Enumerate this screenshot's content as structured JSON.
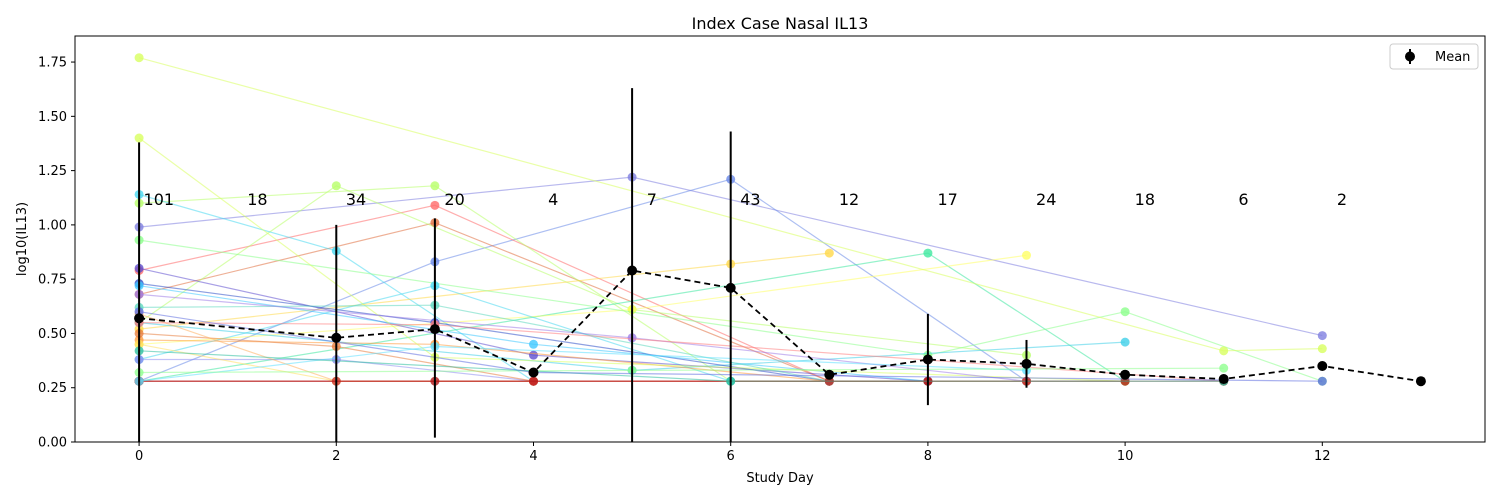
{
  "chart_data": {
    "type": "line",
    "title": "Index Case Nasal IL13",
    "xlabel": "Study Day",
    "ylabel": "log10(IL13)",
    "xlim": [
      -0.65,
      13.65
    ],
    "ylim": [
      0.0,
      1.87
    ],
    "xticks": [
      0,
      2,
      4,
      6,
      8,
      10,
      12
    ],
    "xtick_labels": [
      "0",
      "2",
      "4",
      "6",
      "8",
      "10",
      "12"
    ],
    "yticks": [
      0.0,
      0.25,
      0.5,
      0.75,
      1.0,
      1.25,
      1.5,
      1.75
    ],
    "ytick_labels": [
      "0.00",
      "0.25",
      "0.50",
      "0.75",
      "1.00",
      "1.25",
      "1.50",
      "1.75"
    ],
    "grid": false,
    "legend": {
      "position": "top-right",
      "entries": [
        "Mean"
      ]
    },
    "mean_color": "#000000",
    "mean_series": {
      "name": "Mean",
      "x": [
        0,
        2,
        3,
        4,
        5,
        6,
        7,
        8,
        9,
        10,
        11,
        12,
        13
      ],
      "y": [
        0.57,
        0.48,
        0.52,
        0.32,
        0.79,
        0.71,
        0.31,
        0.38,
        0.36,
        0.31,
        0.29,
        0.35,
        0.28
      ],
      "err_low": [
        0.0,
        0.0,
        0.02,
        0.32,
        0.0,
        0.0,
        0.31,
        0.17,
        0.25,
        0.31,
        0.29,
        0.35,
        0.28
      ],
      "err_high": [
        1.38,
        1.0,
        1.03,
        0.32,
        1.63,
        1.43,
        0.31,
        0.59,
        0.47,
        0.31,
        0.29,
        0.35,
        0.28
      ]
    },
    "day_counts": [
      {
        "x": 0,
        "label": "101"
      },
      {
        "x": 1,
        "label": "18"
      },
      {
        "x": 2,
        "label": "34"
      },
      {
        "x": 3,
        "label": "20"
      },
      {
        "x": 4,
        "label": "4"
      },
      {
        "x": 5,
        "label": "7"
      },
      {
        "x": 6,
        "label": "43"
      },
      {
        "x": 7,
        "label": "12"
      },
      {
        "x": 8,
        "label": "17"
      },
      {
        "x": 9,
        "label": "24"
      },
      {
        "x": 10,
        "label": "18"
      },
      {
        "x": 11,
        "label": "6"
      },
      {
        "x": 12,
        "label": "2"
      }
    ],
    "count_label_y": 1.12,
    "subject_series": [
      {
        "color": "#8080e0",
        "x": [
          0,
          5,
          12
        ],
        "y": [
          0.99,
          1.22,
          0.49
        ]
      },
      {
        "color": "#6a8ae8",
        "x": [
          0,
          3,
          6,
          9
        ],
        "y": [
          0.28,
          0.83,
          1.21,
          0.28
        ]
      },
      {
        "color": "#ff6b6b",
        "x": [
          0,
          3,
          7
        ],
        "y": [
          0.79,
          1.09,
          0.28
        ]
      },
      {
        "color": "#e07040",
        "x": [
          0,
          3,
          7
        ],
        "y": [
          0.68,
          1.01,
          0.28
        ]
      },
      {
        "color": "#b8ff6a",
        "x": [
          0,
          2,
          5,
          9
        ],
        "y": [
          0.55,
          1.18,
          0.61,
          0.4
        ]
      },
      {
        "color": "#b8ff6a",
        "x": [
          0,
          3,
          6,
          8
        ],
        "y": [
          1.1,
          1.18,
          0.28,
          0.28
        ]
      },
      {
        "color": "#4ad8f0",
        "x": [
          0,
          2,
          4
        ],
        "y": [
          1.14,
          0.88,
          0.28
        ]
      },
      {
        "color": "#ffd84a",
        "x": [
          0,
          6,
          7
        ],
        "y": [
          0.52,
          0.82,
          0.87
        ]
      },
      {
        "color": "#40e8a0",
        "x": [
          0,
          8,
          10
        ],
        "y": [
          0.28,
          0.87,
          0.28
        ]
      },
      {
        "color": "#ffff66",
        "x": [
          0,
          5,
          9
        ],
        "y": [
          0.45,
          0.61,
          0.86
        ]
      },
      {
        "color": "#8cff8c",
        "x": [
          0,
          8,
          10,
          12
        ],
        "y": [
          0.93,
          0.4,
          0.6,
          0.28
        ]
      },
      {
        "color": "#4ad8f0",
        "x": [
          0,
          3,
          6
        ],
        "y": [
          0.38,
          0.72,
          0.28
        ]
      },
      {
        "color": "#40d0e8",
        "x": [
          0,
          5,
          10
        ],
        "y": [
          0.55,
          0.33,
          0.46
        ]
      },
      {
        "color": "#6050d0",
        "x": [
          0,
          4,
          8
        ],
        "y": [
          0.8,
          0.4,
          0.28
        ]
      },
      {
        "color": "#3050c8",
        "x": [
          0,
          3,
          7
        ],
        "y": [
          0.73,
          0.55,
          0.28
        ]
      },
      {
        "color": "#9090f0",
        "x": [
          0,
          2,
          4
        ],
        "y": [
          0.38,
          0.38,
          0.28
        ]
      },
      {
        "color": "#ff9c40",
        "x": [
          0,
          3,
          7
        ],
        "y": [
          0.47,
          0.45,
          0.28
        ]
      },
      {
        "color": "#e88040",
        "x": [
          0,
          2,
          4
        ],
        "y": [
          0.5,
          0.44,
          0.28
        ]
      },
      {
        "color": "#40c8ff",
        "x": [
          0,
          4,
          8
        ],
        "y": [
          0.72,
          0.45,
          0.28
        ]
      },
      {
        "color": "#ffe060",
        "x": [
          0,
          2,
          4
        ],
        "y": [
          0.45,
          0.28,
          0.28
        ]
      },
      {
        "color": "#d8ff60",
        "x": [
          0,
          11,
          12
        ],
        "y": [
          1.77,
          0.42,
          0.43
        ]
      },
      {
        "color": "#d8ff60",
        "x": [
          0,
          3,
          10
        ],
        "y": [
          1.4,
          0.39,
          0.28
        ]
      },
      {
        "color": "#60d8c0",
        "x": [
          0,
          3,
          7
        ],
        "y": [
          0.62,
          0.63,
          0.28
        ]
      },
      {
        "color": "#a080e8",
        "x": [
          0,
          5,
          9
        ],
        "y": [
          0.68,
          0.48,
          0.28
        ]
      },
      {
        "color": "#ffb060",
        "x": [
          0,
          2,
          9
        ],
        "y": [
          0.59,
          0.28,
          0.28
        ]
      },
      {
        "color": "#ff8080",
        "x": [
          0,
          3,
          11
        ],
        "y": [
          0.55,
          0.54,
          0.28
        ]
      },
      {
        "color": "#d04040",
        "x": [
          0,
          2,
          4,
          8
        ],
        "y": [
          0.28,
          0.28,
          0.28,
          0.28
        ]
      },
      {
        "color": "#c02020",
        "x": [
          0,
          4,
          7,
          9,
          11
        ],
        "y": [
          0.28,
          0.28,
          0.28,
          0.28,
          0.28
        ]
      },
      {
        "color": "#b01818",
        "x": [
          0,
          3,
          8,
          10
        ],
        "y": [
          0.28,
          0.28,
          0.28,
          0.28
        ]
      },
      {
        "color": "#60e0ff",
        "x": [
          0,
          3,
          9
        ],
        "y": [
          0.28,
          0.44,
          0.33
        ]
      },
      {
        "color": "#90ff90",
        "x": [
          0,
          5,
          11
        ],
        "y": [
          0.32,
          0.33,
          0.34
        ]
      },
      {
        "color": "#30c0a0",
        "x": [
          0,
          6,
          11
        ],
        "y": [
          0.42,
          0.28,
          0.28
        ]
      },
      {
        "color": "#6070e0",
        "x": [
          0,
          4,
          12
        ],
        "y": [
          0.6,
          0.32,
          0.28
        ]
      }
    ]
  }
}
